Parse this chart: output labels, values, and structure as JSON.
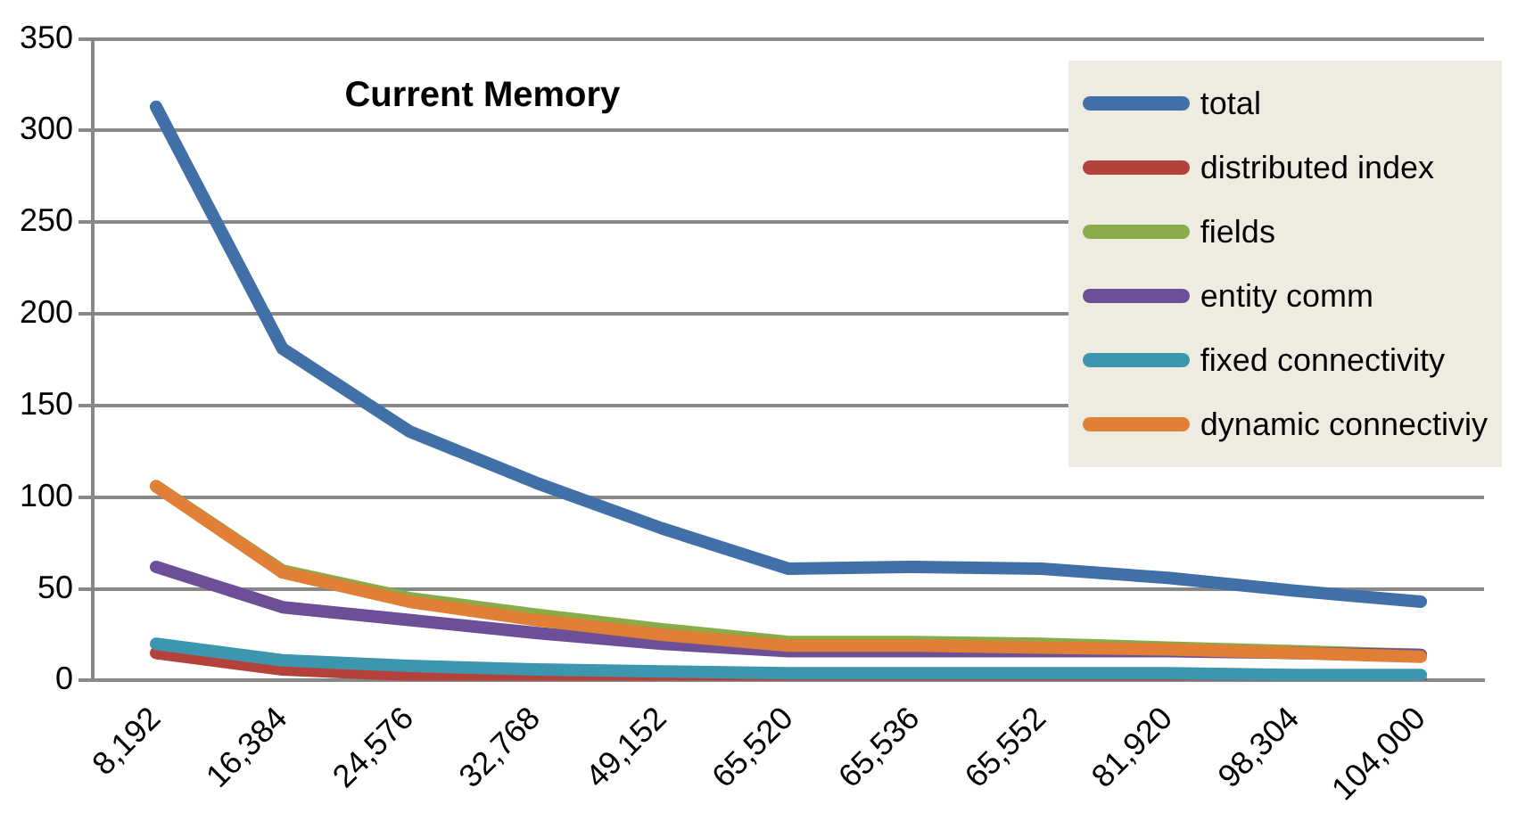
{
  "chart_data": {
    "type": "line",
    "title": "Current Memory",
    "categories": [
      "8,192",
      "16,384",
      "24,576",
      "32,768",
      "49,152",
      "65,520",
      "65,536",
      "65,552",
      "81,920",
      "98,304",
      "104,000"
    ],
    "series": [
      {
        "name": "total",
        "color": "#4170a9",
        "values": [
          313,
          181,
          136,
          108,
          83,
          61,
          62,
          61,
          56,
          49,
          43
        ]
      },
      {
        "name": "distributed index",
        "color": "#b5413b",
        "values": [
          15,
          6,
          3,
          1,
          0,
          0,
          0,
          0,
          0,
          0,
          0
        ]
      },
      {
        "name": "fields",
        "color": "#8aab4a",
        "values": [
          106,
          60,
          45,
          36,
          28,
          21,
          21,
          20,
          18,
          16,
          14
        ]
      },
      {
        "name": "entity comm",
        "color": "#6c4f96",
        "values": [
          62,
          40,
          33,
          26,
          20,
          16,
          16,
          16,
          16,
          15,
          14
        ]
      },
      {
        "name": "fixed connectivity",
        "color": "#3c97ae",
        "values": [
          20,
          11,
          8,
          6,
          5,
          4,
          4,
          4,
          4,
          3,
          3
        ]
      },
      {
        "name": "dynamic connectiviy",
        "color": "#e07f35",
        "values": [
          106,
          59,
          43,
          33,
          25,
          19,
          19,
          18,
          17,
          15,
          13
        ]
      }
    ],
    "ylim": [
      0,
      350
    ],
    "yticks": [
      0,
      50,
      100,
      150,
      200,
      250,
      300,
      350
    ],
    "grid": "y",
    "legend": "top right",
    "marker": "none",
    "line_style": "solid"
  }
}
